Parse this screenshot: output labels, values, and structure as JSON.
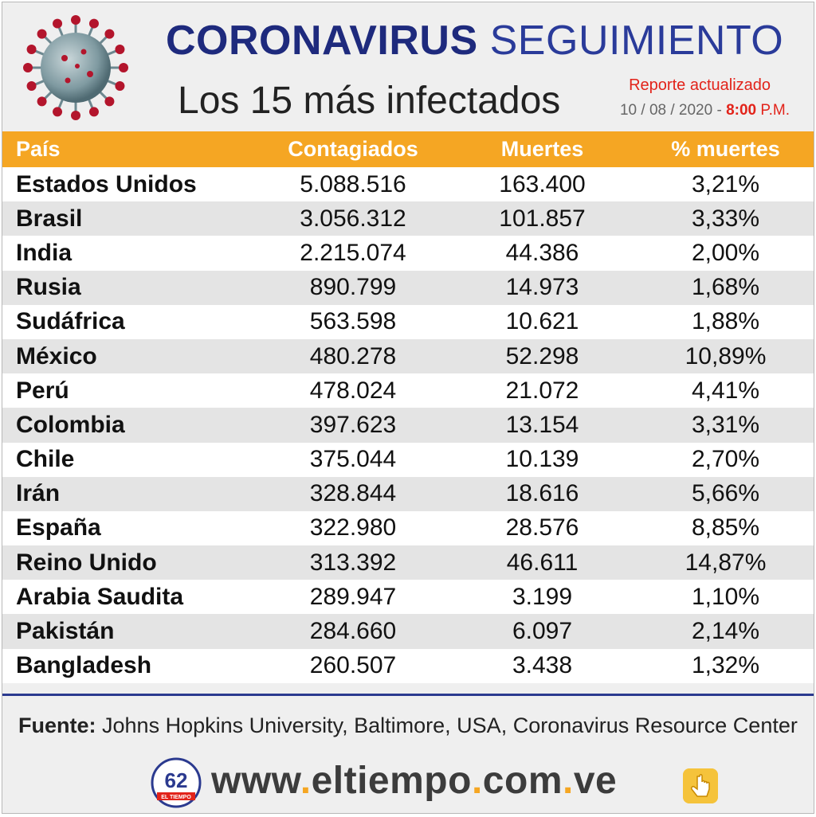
{
  "header": {
    "title_main": "CORONAVIRUS",
    "title_secondary": "SEGUIMIENTO",
    "subtitle": "Los 15 más infectados",
    "report_label": "Reporte actualizado",
    "report_date": "10 / 08 / 2020 -",
    "report_time": "8:00",
    "report_ampm": "P.M."
  },
  "colors": {
    "header_bar": "#f5a623",
    "title_blue": "#1e2a7d",
    "accent_red": "#e2231a",
    "divider": "#2b3a8f"
  },
  "chart_data": {
    "type": "table",
    "columns": [
      "País",
      "Contagiados",
      "Muertes",
      "% muertes"
    ],
    "rows": [
      [
        "Estados Unidos",
        "5.088.516",
        "163.400",
        "3,21%"
      ],
      [
        "Brasil",
        "3.056.312",
        "101.857",
        "3,33%"
      ],
      [
        "India",
        "2.215.074",
        "44.386",
        "2,00%"
      ],
      [
        "Rusia",
        "890.799",
        "14.973",
        "1,68%"
      ],
      [
        "Sudáfrica",
        "563.598",
        "10.621",
        "1,88%"
      ],
      [
        "México",
        "480.278",
        "52.298",
        "10,89%"
      ],
      [
        "Perú",
        "478.024",
        "21.072",
        "4,41%"
      ],
      [
        "Colombia",
        "397.623",
        "13.154",
        "3,31%"
      ],
      [
        "Chile",
        "375.044",
        "10.139",
        "2,70%"
      ],
      [
        "Irán",
        "328.844",
        "18.616",
        "5,66%"
      ],
      [
        "España",
        "322.980",
        "28.576",
        "8,85%"
      ],
      [
        "Reino Unido",
        "313.392",
        "46.611",
        "14,87%"
      ],
      [
        "Arabia Saudita",
        "289.947",
        "3.199",
        "1,10%"
      ],
      [
        "Pakistán",
        "284.660",
        "6.097",
        "2,14%"
      ],
      [
        "Bangladesh",
        "260.507",
        "3.438",
        "1,32%"
      ]
    ]
  },
  "footer": {
    "source_label": "Fuente:",
    "source_text": "Johns Hopkins University, Baltimore, USA, Coronavirus Resource Center",
    "site_www": "www",
    "site_name": "eltiempo",
    "site_com": "com",
    "site_ve": "ve",
    "logo_number": "62",
    "logo_text": "EL TIEMPO",
    "icons": [
      "virus-icon",
      "eltiempo-logo-icon",
      "click-hand-icon"
    ]
  }
}
